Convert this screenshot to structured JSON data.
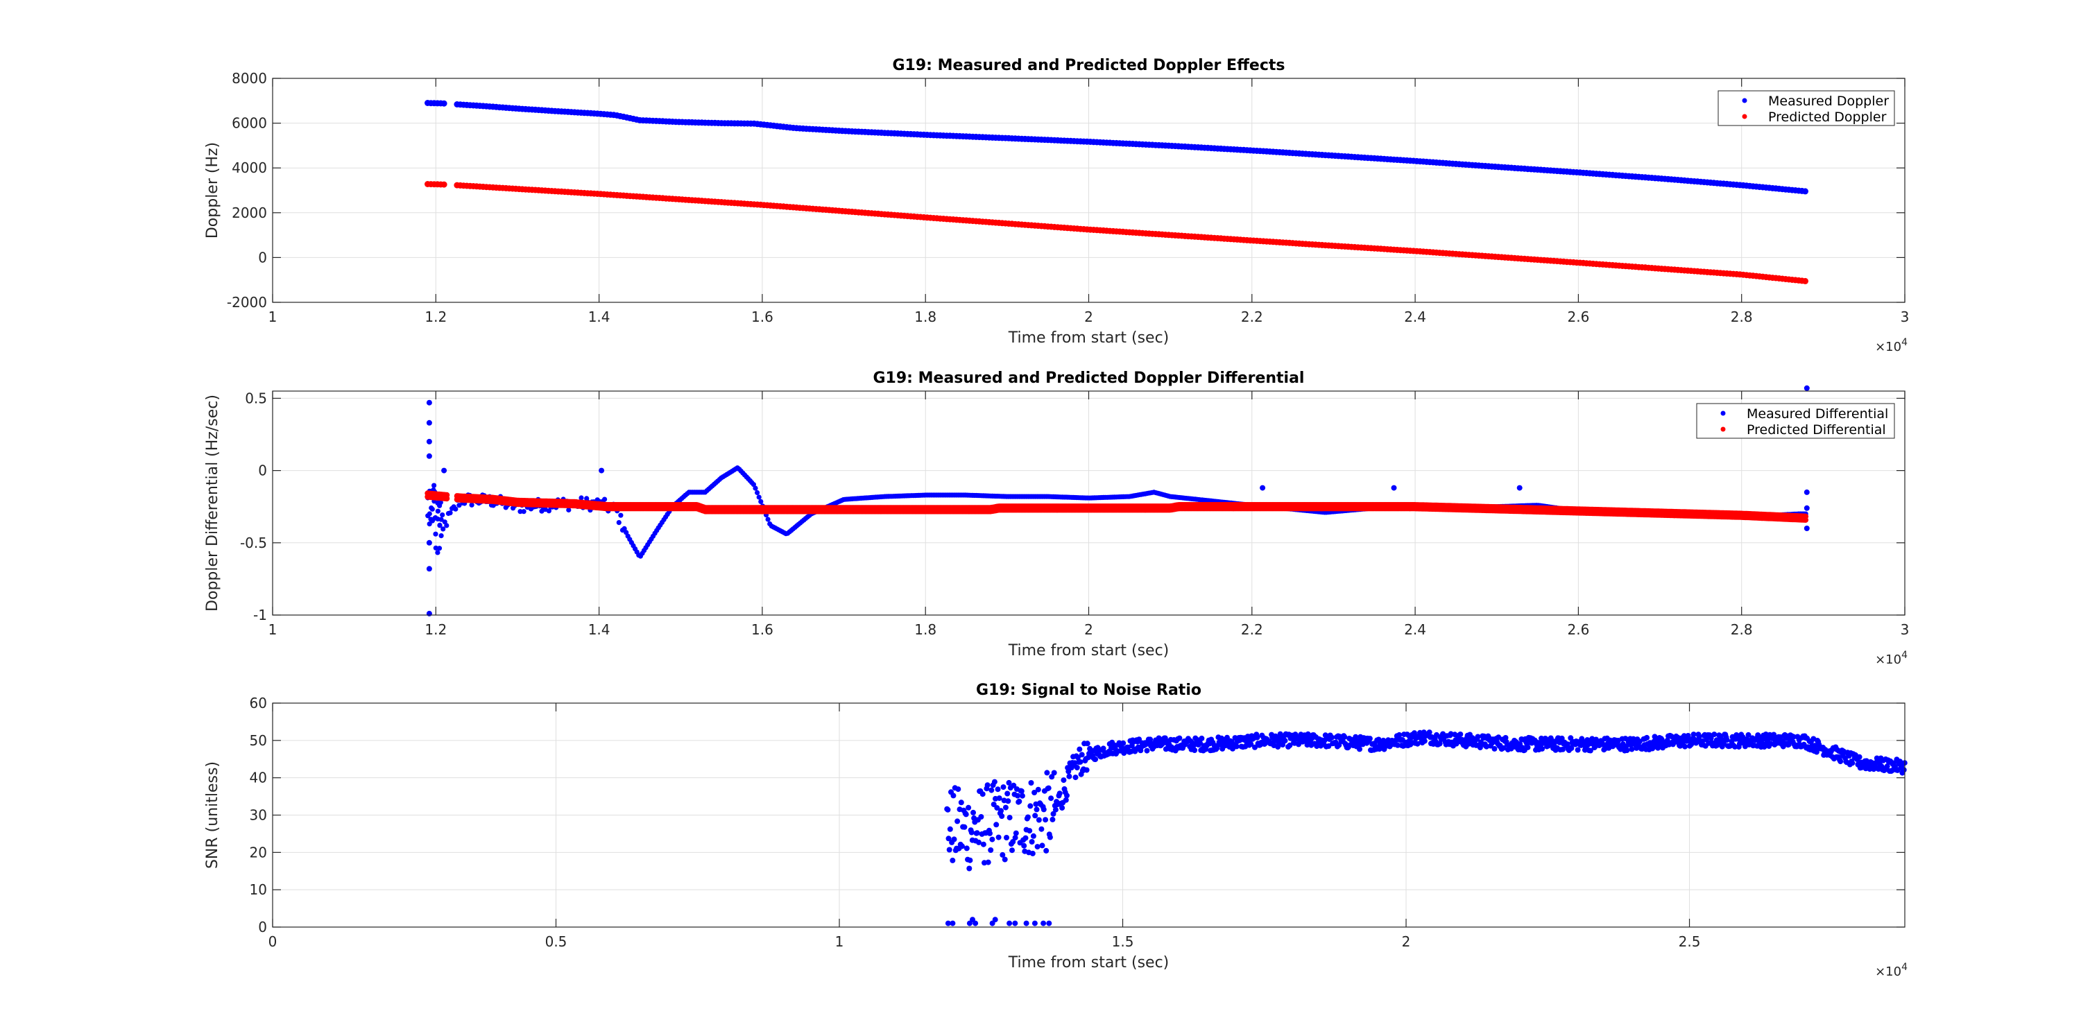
{
  "chart_data": [
    {
      "type": "scatter",
      "title": "G19: Measured and Predicted Doppler Effects",
      "xlabel": "Time from start (sec)",
      "ylabel": "Doppler (Hz)",
      "xlim": [
        10000,
        30000
      ],
      "ylim": [
        -2000,
        8000
      ],
      "xticks": [
        10000,
        12000,
        14000,
        16000,
        18000,
        20000,
        22000,
        24000,
        26000,
        28000,
        30000
      ],
      "xtick_labels": [
        "1",
        "1.2",
        "1.4",
        "1.6",
        "1.8",
        "2",
        "2.2",
        "2.4",
        "2.6",
        "2.8",
        "3"
      ],
      "yticks": [
        -2000,
        0,
        2000,
        4000,
        6000,
        8000
      ],
      "ytick_labels": [
        "-2000",
        "0",
        "2000",
        "4000",
        "6000",
        "8000"
      ],
      "x_exponent_label": "×10",
      "x_exponent_power": "4",
      "grid": true,
      "legend_position": "top-right",
      "series": [
        {
          "name": "Measured Doppler",
          "color": "#0000ff",
          "x": [
            11900,
            12100,
            12300,
            12600,
            13000,
            13500,
            14000,
            14200,
            14500,
            15000,
            15500,
            15900,
            16400,
            17000,
            18000,
            19000,
            20000,
            21000,
            22000,
            23000,
            24000,
            25000,
            26000,
            27000,
            28000,
            28800
          ],
          "y": [
            6900,
            6880,
            6830,
            6760,
            6650,
            6530,
            6420,
            6360,
            6130,
            6050,
            6000,
            5980,
            5780,
            5650,
            5480,
            5330,
            5170,
            4990,
            4780,
            4550,
            4310,
            4050,
            3800,
            3530,
            3230,
            2950
          ]
        },
        {
          "name": "Predicted Doppler",
          "color": "#ff0000",
          "x": [
            11900,
            12100,
            12300,
            14000,
            16000,
            18000,
            20000,
            22000,
            24000,
            26000,
            28000,
            28800
          ],
          "y": [
            3280,
            3260,
            3220,
            2840,
            2350,
            1790,
            1250,
            760,
            290,
            -230,
            -760,
            -1060
          ]
        }
      ]
    },
    {
      "type": "scatter",
      "title": "G19: Measured and Predicted Doppler Differential",
      "xlabel": "Time from start (sec)",
      "ylabel": "Doppler Differential (Hz/sec)",
      "xlim": [
        10000,
        30000
      ],
      "ylim": [
        -1,
        0.55
      ],
      "xticks": [
        10000,
        12000,
        14000,
        16000,
        18000,
        20000,
        22000,
        24000,
        26000,
        28000,
        30000
      ],
      "xtick_labels": [
        "1",
        "1.2",
        "1.4",
        "1.6",
        "1.8",
        "2",
        "2.2",
        "2.4",
        "2.6",
        "2.8",
        "3"
      ],
      "yticks": [
        -1,
        -0.5,
        0,
        0.5
      ],
      "ytick_labels": [
        "-1",
        "-0.5",
        "0",
        "0.5"
      ],
      "x_exponent_label": "×10",
      "x_exponent_power": "4",
      "grid": true,
      "legend_position": "top-right",
      "series": [
        {
          "name": "Measured Differential",
          "color": "#0000ff",
          "x": [
            12050,
            12100,
            12300,
            12700,
            13000,
            13500,
            14000,
            14200,
            14350,
            14500,
            14700,
            14900,
            15100,
            15300,
            15500,
            15700,
            15900,
            16100,
            16300,
            16600,
            17000,
            17500,
            18000,
            18500,
            19000,
            19500,
            20000,
            20500,
            20800,
            21000,
            22000,
            22900,
            23500,
            24000,
            25000,
            25500,
            26000,
            27000,
            28000,
            28700
          ],
          "y": [
            -0.55,
            -0.38,
            -0.2,
            -0.21,
            -0.25,
            -0.23,
            -0.23,
            -0.27,
            -0.45,
            -0.6,
            -0.42,
            -0.25,
            -0.15,
            -0.15,
            -0.05,
            0.02,
            -0.1,
            -0.38,
            -0.44,
            -0.3,
            -0.2,
            -0.18,
            -0.17,
            -0.17,
            -0.18,
            -0.18,
            -0.19,
            -0.18,
            -0.15,
            -0.18,
            -0.24,
            -0.29,
            -0.26,
            -0.25,
            -0.25,
            -0.24,
            -0.28,
            -0.3,
            -0.32,
            -0.3
          ],
          "outliers_x": [
            11920,
            11920,
            11920,
            11920,
            11920,
            11920,
            11920,
            12100,
            14030,
            22130,
            23740,
            25280,
            28800,
            28800,
            28800,
            28800
          ],
          "outliers_y": [
            0.47,
            0.33,
            0.2,
            0.1,
            -0.5,
            -0.68,
            -0.99,
            0.0,
            0.0,
            -0.12,
            -0.12,
            -0.12,
            0.57,
            -0.15,
            -0.26,
            -0.4
          ]
        },
        {
          "name": "Predicted Differential",
          "color": "#ff0000",
          "x": [
            11900,
            12300,
            12700,
            13000,
            13700,
            14100,
            15200,
            15300,
            18800,
            18900,
            21000,
            21100,
            22000,
            24000,
            26000,
            28000,
            28800
          ],
          "y": [
            -0.17,
            -0.19,
            -0.2,
            -0.22,
            -0.23,
            -0.25,
            -0.25,
            -0.27,
            -0.27,
            -0.26,
            -0.26,
            -0.25,
            -0.25,
            -0.25,
            -0.28,
            -0.31,
            -0.33
          ]
        }
      ]
    },
    {
      "type": "scatter",
      "title": "G19: Signal to Noise Ratio",
      "xlabel": "Time from start (sec)",
      "ylabel": "SNR (unitless)",
      "xlim": [
        0,
        28800
      ],
      "ylim": [
        0,
        60
      ],
      "xticks": [
        0,
        5000,
        10000,
        15000,
        20000,
        25000
      ],
      "xtick_labels": [
        "0",
        "0.5",
        "1",
        "1.5",
        "2",
        "2.5"
      ],
      "yticks": [
        0,
        10,
        20,
        30,
        40,
        50,
        60
      ],
      "ytick_labels": [
        "0",
        "10",
        "20",
        "30",
        "40",
        "50",
        "60"
      ],
      "x_exponent_label": "×10",
      "x_exponent_power": "4",
      "grid": true,
      "series": [
        {
          "name": "SNR",
          "color": "#0000ff",
          "x": [
            11900,
            12300,
            12700,
            13100,
            13500,
            13800,
            14000,
            14200,
            14400,
            14800,
            15500,
            16500,
            17500,
            18500,
            19500,
            20300,
            21000,
            22000,
            23000,
            24000,
            25000,
            26000,
            27000,
            27500,
            28000,
            28800
          ],
          "y": [
            27,
            26,
            28,
            29,
            30,
            31,
            38,
            44,
            46,
            48,
            49,
            49,
            50,
            50,
            49,
            51,
            50,
            49,
            49,
            49,
            50,
            50,
            50,
            47,
            44,
            43
          ],
          "low_x": [
            11920,
            12000,
            12300,
            12350,
            12400,
            12700,
            12750,
            13000,
            13100,
            13300,
            13450,
            13600,
            13700
          ],
          "low_y": [
            1,
            1,
            1,
            2,
            1,
            1,
            2,
            1,
            1,
            1,
            1,
            1,
            1
          ]
        }
      ]
    }
  ]
}
